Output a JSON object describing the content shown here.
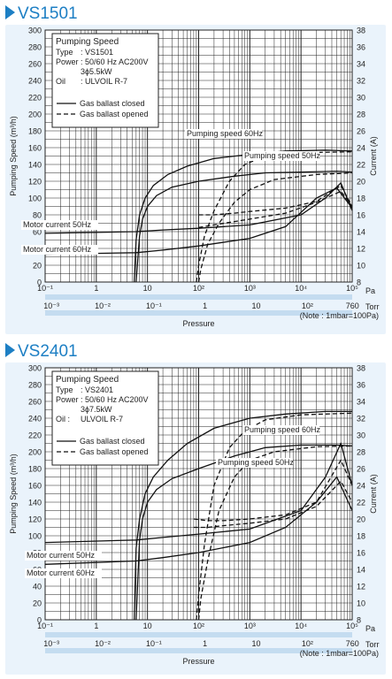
{
  "colors": {
    "accent": "#1d7fc4",
    "panel": "#eaf3fb",
    "pa_band": "#c4dcf0"
  },
  "chart_data": [
    {
      "type": "line",
      "title": "VS1501",
      "xlabel": "Pressure",
      "ylabel": "Pumping Speed (m³/h)",
      "y2label": "Current (A)",
      "x_unit": "Pa",
      "x2_unit": "Torr",
      "note": "(Note : 1mbar=100Pa)",
      "xscale": "log",
      "xlim": [
        0.1,
        100000
      ],
      "ylim": [
        0,
        300
      ],
      "y2lim": [
        8,
        38
      ],
      "grid": true,
      "x_ticks": [
        {
          "value": 0.1,
          "label": "10⁻¹"
        },
        {
          "value": 1,
          "label": "1"
        },
        {
          "value": 10,
          "label": "10"
        },
        {
          "value": 100,
          "label": "10²"
        },
        {
          "value": 1000,
          "label": "10³"
        },
        {
          "value": 10000,
          "label": "10⁴"
        },
        {
          "value": 100000,
          "label": "10⁵"
        }
      ],
      "torr_ticks": [
        {
          "value": 0.133,
          "label": "10⁻³"
        },
        {
          "value": 1.33,
          "label": "10⁻²"
        },
        {
          "value": 13.3,
          "label": "10⁻¹"
        },
        {
          "value": 133,
          "label": "1"
        },
        {
          "value": 1330,
          "label": "10"
        },
        {
          "value": 13300,
          "label": "10²"
        },
        {
          "value": 101300,
          "label": "760"
        }
      ],
      "y_ticks": [
        "0",
        "20",
        "40",
        "60",
        "80",
        "100",
        "120",
        "140",
        "160",
        "180",
        "200",
        "220",
        "240",
        "260",
        "280",
        "300"
      ],
      "y2_ticks": [
        "8",
        "10",
        "12",
        "14",
        "16",
        "18",
        "20",
        "22",
        "24",
        "26",
        "28",
        "30",
        "32",
        "34",
        "36",
        "38"
      ],
      "legend": {
        "title": "Pumping Speed",
        "rows": [
          {
            "key": "Type",
            "value": ": VS1501"
          },
          {
            "key": "Power",
            "value": ": 50/60 Hz AC200V"
          },
          {
            "key": "",
            "value": "3ϕ5.5kW"
          },
          {
            "key": "Oil",
            "value": ": ULVOIL R-7"
          }
        ],
        "closed": "Gas ballast closed",
        "opened": "Gas ballast opened"
      },
      "annotations": {
        "ps60": "Pumping speed 60Hz",
        "ps50": "Pumping speed 50Hz",
        "mc50": "Motor current 50Hz",
        "mc60": "Motor current 60Hz"
      },
      "series": [
        {
          "role": "ps60-closed",
          "style": "solid",
          "x": [
            5.5,
            6,
            7,
            9,
            13,
            25,
            60,
            200,
            1000,
            5000,
            30000,
            100000
          ],
          "y": [
            0,
            50,
            80,
            100,
            115,
            128,
            138,
            147,
            152,
            156,
            157,
            156
          ]
        },
        {
          "role": "ps50-closed",
          "style": "solid",
          "x": [
            6,
            7,
            8,
            10,
            15,
            30,
            100,
            500,
            2000,
            10000,
            50000,
            100000
          ],
          "y": [
            0,
            55,
            75,
            90,
            103,
            113,
            120,
            126,
            130,
            131,
            132,
            131
          ]
        },
        {
          "role": "ps60-opened",
          "style": "dashed",
          "x": [
            90,
            100,
            130,
            200,
            400,
            800,
            2000,
            10000,
            100000
          ],
          "y": [
            0,
            20,
            55,
            85,
            120,
            140,
            150,
            154,
            155
          ]
        },
        {
          "role": "ps50-opened",
          "style": "dashed",
          "x": [
            100,
            110,
            150,
            250,
            500,
            1000,
            3000,
            20000,
            100000
          ],
          "y": [
            0,
            15,
            45,
            70,
            95,
            110,
            122,
            128,
            130
          ]
        },
        {
          "role": "mc50-closed",
          "style": "solid",
          "x": [
            0.1,
            6,
            20,
            100,
            1000,
            10000,
            30000,
            60000,
            100000
          ],
          "y": [
            58,
            60,
            62,
            64,
            68,
            80,
            100,
            118,
            85
          ]
        },
        {
          "role": "mc60-closed",
          "style": "solid",
          "x": [
            0.1,
            6,
            20,
            100,
            1000,
            5000,
            20000,
            50000,
            100000
          ],
          "y": [
            33,
            35,
            38,
            43,
            52,
            66,
            100,
            112,
            88
          ]
        },
        {
          "role": "mc50-opened",
          "style": "dashed",
          "x": [
            100,
            200,
            500,
            1000,
            5000,
            20000,
            60000,
            100000
          ],
          "y": [
            80,
            80,
            82,
            84,
            88,
            96,
            115,
            90
          ]
        },
        {
          "role": "mc60-opened",
          "style": "dashed",
          "x": [
            100,
            200,
            500,
            1000,
            5000,
            20000,
            60000,
            100000
          ],
          "y": [
            65,
            68,
            72,
            75,
            82,
            95,
            108,
            90
          ]
        }
      ]
    },
    {
      "type": "line",
      "title": "VS2401",
      "xlabel": "Pressure",
      "ylabel": "Pumping Speed (m³/h)",
      "y2label": "Current (A)",
      "x_unit": "Pa",
      "x2_unit": "Torr",
      "note": "(Note : 1mbar=100Pa)",
      "xscale": "log",
      "xlim": [
        0.1,
        100000
      ],
      "ylim": [
        0,
        300
      ],
      "y2lim": [
        8,
        38
      ],
      "grid": true,
      "x_ticks": [
        {
          "value": 0.1,
          "label": "10⁻¹"
        },
        {
          "value": 1,
          "label": "1"
        },
        {
          "value": 10,
          "label": "10"
        },
        {
          "value": 100,
          "label": "10²"
        },
        {
          "value": 1000,
          "label": "10³"
        },
        {
          "value": 10000,
          "label": "10⁴"
        },
        {
          "value": 100000,
          "label": "10⁵"
        }
      ],
      "torr_ticks": [
        {
          "value": 0.133,
          "label": "10⁻³"
        },
        {
          "value": 1.33,
          "label": "10⁻²"
        },
        {
          "value": 13.3,
          "label": "10⁻¹"
        },
        {
          "value": 133,
          "label": "1"
        },
        {
          "value": 1330,
          "label": "10"
        },
        {
          "value": 13300,
          "label": "10²"
        },
        {
          "value": 101300,
          "label": "760"
        }
      ],
      "y_ticks": [
        "0",
        "20",
        "40",
        "60",
        "80",
        "100",
        "120",
        "140",
        "160",
        "180",
        "200",
        "220",
        "240",
        "260",
        "280",
        "300"
      ],
      "y2_ticks": [
        "8",
        "10",
        "12",
        "14",
        "16",
        "18",
        "20",
        "22",
        "24",
        "26",
        "28",
        "30",
        "32",
        "34",
        "36",
        "38"
      ],
      "legend": {
        "title": "Pumping Speed",
        "rows": [
          {
            "key": "Type",
            "value": ": VS2401"
          },
          {
            "key": "Power",
            "value": ": 50/60 Hz AC200V"
          },
          {
            "key": "",
            "value": "3ϕ7.5kW"
          },
          {
            "key": "Oil :",
            "value": "ULVOIL R-7"
          }
        ],
        "closed": "Gas ballast closed",
        "opened": "Gas ballast opened"
      },
      "annotations": {
        "ps60": "Pumping speed 60Hz",
        "ps50": "Pumping speed 50Hz",
        "mc50": "Motor current 50Hz",
        "mc60": "Motor current 60Hz"
      },
      "series": [
        {
          "role": "ps60-closed",
          "style": "solid",
          "x": [
            5.5,
            6,
            7,
            9,
            13,
            25,
            60,
            200,
            1000,
            5000,
            30000,
            100000
          ],
          "y": [
            0,
            85,
            120,
            150,
            170,
            190,
            210,
            228,
            240,
            245,
            248,
            248
          ]
        },
        {
          "role": "ps50-closed",
          "style": "solid",
          "x": [
            6,
            7,
            8,
            10,
            15,
            30,
            100,
            500,
            2000,
            10000,
            50000,
            100000
          ],
          "y": [
            0,
            95,
            120,
            140,
            155,
            168,
            180,
            195,
            205,
            208,
            208,
            207
          ]
        },
        {
          "role": "ps60-opened",
          "style": "dashed",
          "x": [
            90,
            100,
            130,
            200,
            400,
            800,
            2000,
            10000,
            100000
          ],
          "y": [
            0,
            30,
            90,
            160,
            205,
            225,
            238,
            244,
            246
          ]
        },
        {
          "role": "ps50-opened",
          "style": "dashed",
          "x": [
            100,
            110,
            150,
            250,
            500,
            1000,
            3000,
            20000,
            100000
          ],
          "y": [
            0,
            25,
            70,
            130,
            170,
            190,
            200,
            206,
            207
          ]
        },
        {
          "role": "mc50-closed",
          "style": "solid",
          "x": [
            0.1,
            6,
            20,
            100,
            1000,
            10000,
            30000,
            60000,
            100000
          ],
          "y": [
            92,
            95,
            98,
            102,
            108,
            130,
            170,
            210,
            160
          ]
        },
        {
          "role": "mc60-closed",
          "style": "solid",
          "x": [
            0.1,
            6,
            20,
            100,
            1000,
            5000,
            20000,
            50000,
            100000
          ],
          "y": [
            66,
            70,
            74,
            80,
            92,
            110,
            140,
            170,
            130
          ]
        },
        {
          "role": "mc50-opened",
          "style": "dashed",
          "x": [
            80,
            150,
            300,
            1000,
            5000,
            20000,
            60000,
            100000
          ],
          "y": [
            120,
            118,
            118,
            120,
            125,
            140,
            190,
            160
          ]
        },
        {
          "role": "mc60-opened",
          "style": "dashed",
          "x": [
            80,
            150,
            300,
            1000,
            5000,
            20000,
            60000,
            100000
          ],
          "y": [
            110,
            110,
            112,
            115,
            120,
            135,
            165,
            140
          ]
        }
      ]
    }
  ]
}
